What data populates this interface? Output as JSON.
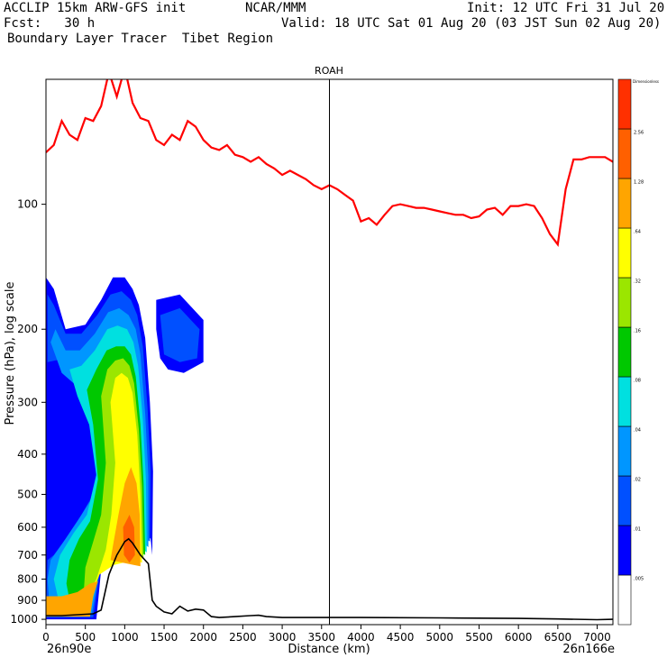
{
  "header": {
    "model": "ACCLIP 15km ARW-GFS init",
    "org": "NCAR/MMM",
    "init": "Init: 12 UTC Fri 31 Jul 20",
    "fcst": "Fcst:   30 h",
    "valid": "Valid: 18 UTC Sat 01 Aug 20 (03 JST Sun 02 Aug 20)",
    "product": "Boundary Layer Tracer  Tibet Region"
  },
  "chart_data": {
    "type": "heatmap",
    "title": "ROAH",
    "xlabel": "Distance (km)",
    "ylabel": "Pressure (hPa), log scale",
    "x_ticks": [
      "0",
      "500",
      "1000",
      "1500",
      "2000",
      "2500",
      "3000",
      "3500",
      "4000",
      "4500",
      "5000",
      "5500",
      "6000",
      "6500",
      "7000"
    ],
    "x_tick_values": [
      0,
      500,
      1000,
      1500,
      2000,
      2500,
      3000,
      3500,
      4000,
      4500,
      5000,
      5500,
      6000,
      6500,
      7000
    ],
    "xlim": [
      0,
      7200
    ],
    "y_ticks": [
      "100",
      "200",
      "300",
      "400",
      "500",
      "600",
      "700",
      "800",
      "900",
      "1000"
    ],
    "y_tick_values": [
      100,
      200,
      300,
      400,
      500,
      600,
      700,
      800,
      900,
      1000
    ],
    "ylim": [
      1030,
      50
    ],
    "y_scale": "log",
    "left_endpoint": "26n90e",
    "right_endpoint": "26n166e",
    "marker_line_km": 3600,
    "colorbar": {
      "top_label": "Dimensionless",
      "levels": [
        ".005",
        ".01",
        ".02",
        ".04",
        ".08",
        ".16",
        ".32",
        ".64",
        "1.28",
        "2.56"
      ],
      "colors": [
        "#ffffff",
        "#0000ff",
        "#0050ff",
        "#0096ff",
        "#00e0e0",
        "#00c800",
        "#9be600",
        "#ffff00",
        "#ffa500",
        "#ff6000",
        "#ff3000"
      ]
    },
    "tropopause_line": {
      "color": "#ff0000",
      "name": "",
      "x": [
        0,
        100,
        200,
        300,
        400,
        500,
        600,
        700,
        800,
        900,
        1000,
        1100,
        1200,
        1300,
        1400,
        1500,
        1600,
        1700,
        1800,
        1900,
        2000,
        2100,
        2200,
        2300,
        2400,
        2500,
        2600,
        2700,
        2800,
        2900,
        3000,
        3100,
        3200,
        3300,
        3400,
        3500,
        3600,
        3700,
        3800,
        3900,
        4000,
        4100,
        4200,
        4300,
        4400,
        4500,
        4600,
        4700,
        4800,
        4900,
        5000,
        5100,
        5200,
        5300,
        5400,
        5500,
        5600,
        5700,
        5800,
        5900,
        6000,
        6100,
        6200,
        6300,
        6400,
        6500,
        6600,
        6700,
        6800,
        6900,
        7000,
        7100,
        7200
      ],
      "y": [
        75,
        72,
        63,
        68,
        70,
        62,
        63,
        58,
        48,
        55,
        47,
        57,
        62,
        63,
        70,
        72,
        68,
        70,
        63,
        65,
        70,
        73,
        74,
        72,
        76,
        77,
        79,
        77,
        80,
        82,
        85,
        83,
        85,
        87,
        90,
        92,
        90,
        92,
        95,
        98,
        110,
        108,
        112,
        106,
        101,
        100,
        101,
        102,
        102,
        103,
        104,
        105,
        106,
        106,
        108,
        107,
        103,
        102,
        106,
        101,
        101,
        100,
        101,
        108,
        118,
        125,
        92,
        78,
        78,
        77,
        77,
        77,
        79
      ]
    },
    "terrain_line": {
      "color": "#000000",
      "name": "",
      "x": [
        0,
        200,
        400,
        600,
        700,
        800,
        900,
        1000,
        1050,
        1100,
        1200,
        1300,
        1350,
        1400,
        1500,
        1600,
        1700,
        1800,
        1900,
        2000,
        2100,
        2200,
        2400,
        2600,
        2700,
        2800,
        3000,
        4000,
        5000,
        6000,
        6500,
        7000,
        7200
      ],
      "y": [
        980,
        980,
        975,
        970,
        950,
        780,
        700,
        650,
        640,
        655,
        700,
        735,
        900,
        930,
        960,
        970,
        930,
        955,
        945,
        950,
        985,
        990,
        985,
        980,
        978,
        985,
        990,
        990,
        992,
        995,
        998,
        1002,
        1000
      ]
    },
    "tracer_plume": {
      "description_levels": [
        ".01",
        ".02",
        ".04",
        ".08",
        ".16",
        ".32",
        ".64",
        "1.28"
      ],
      "core_x_km": [
        1000,
        1100
      ],
      "values_note": ""
    }
  }
}
